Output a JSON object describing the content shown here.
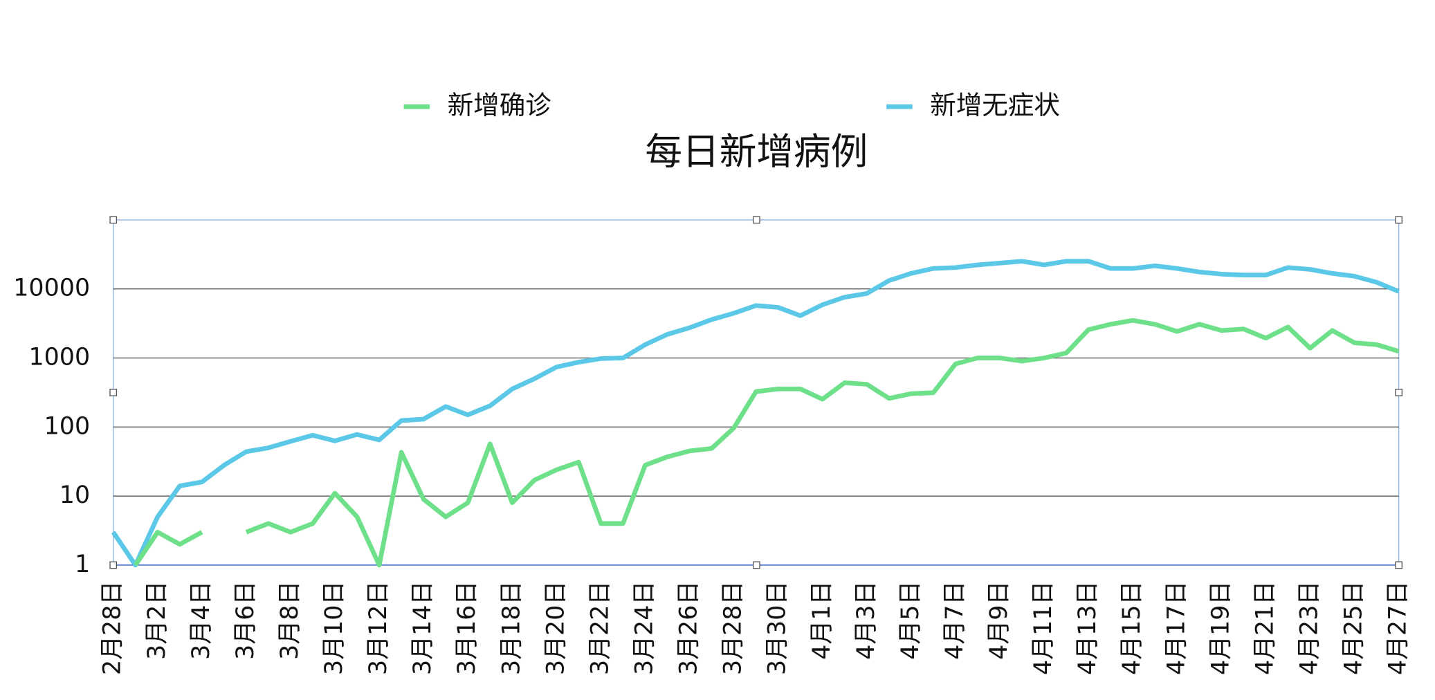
{
  "chart_data": {
    "type": "line",
    "title": "每日新增病例",
    "log_scale": true,
    "grid": true,
    "legend": "top",
    "ylim": [
      1,
      100000
    ],
    "yticks": [
      1,
      10,
      100,
      1000,
      10000
    ],
    "categories": [
      "2月28日",
      null,
      "3月2日",
      null,
      "3月4日",
      null,
      "3月6日",
      null,
      "3月8日",
      null,
      "3月10日",
      null,
      "3月12日",
      null,
      "3月14日",
      null,
      "3月16日",
      null,
      "3月18日",
      null,
      "3月20日",
      null,
      "3月22日",
      null,
      "3月24日",
      null,
      "3月26日",
      null,
      "3月28日",
      null,
      "3月30日",
      null,
      "4月1日",
      null,
      "4月3日",
      null,
      "4月5日",
      null,
      "4月7日",
      null,
      "4月9日",
      null,
      "4月11日",
      null,
      "4月13日",
      null,
      "4月15日",
      null,
      "4月17日",
      null,
      "4月19日",
      null,
      "4月21日",
      null,
      "4月23日",
      null,
      "4月25日",
      null,
      "4月27日"
    ],
    "series": [
      {
        "name": "新增确诊",
        "color": "#6ee08a",
        "values": [
          null,
          1,
          3,
          2,
          3,
          null,
          3,
          4,
          3,
          4,
          11,
          5,
          1,
          43,
          9,
          5,
          8,
          57,
          8,
          17,
          24,
          31,
          4,
          4,
          28,
          37,
          45,
          49,
          97,
          326,
          356,
          356,
          253,
          438,
          416,
          260,
          304,
          314,
          820,
          1000,
          1000,
          900,
          1000,
          1180,
          2570,
          3080,
          3500,
          3080,
          2420,
          3080,
          2500,
          2630,
          1940,
          2810,
          1390,
          2500,
          1660,
          1560,
          1250
        ]
      },
      {
        "name": "新增无症状",
        "color": "#5bc8e8",
        "values": [
          3,
          1,
          5,
          14,
          16,
          28,
          44,
          50,
          62,
          76,
          63,
          78,
          65,
          124,
          130,
          198,
          150,
          203,
          356,
          500,
          740,
          870,
          980,
          1000,
          1560,
          2200,
          2740,
          3600,
          4450,
          5750,
          5400,
          4100,
          5900,
          7600,
          8600,
          13200,
          16800,
          19800,
          20400,
          22300,
          23700,
          25200,
          22300,
          25200,
          25200,
          19800,
          19800,
          21600,
          19800,
          17600,
          16400,
          15900,
          15900,
          20400,
          19200,
          16800,
          15300,
          12500,
          9200
        ]
      }
    ]
  }
}
